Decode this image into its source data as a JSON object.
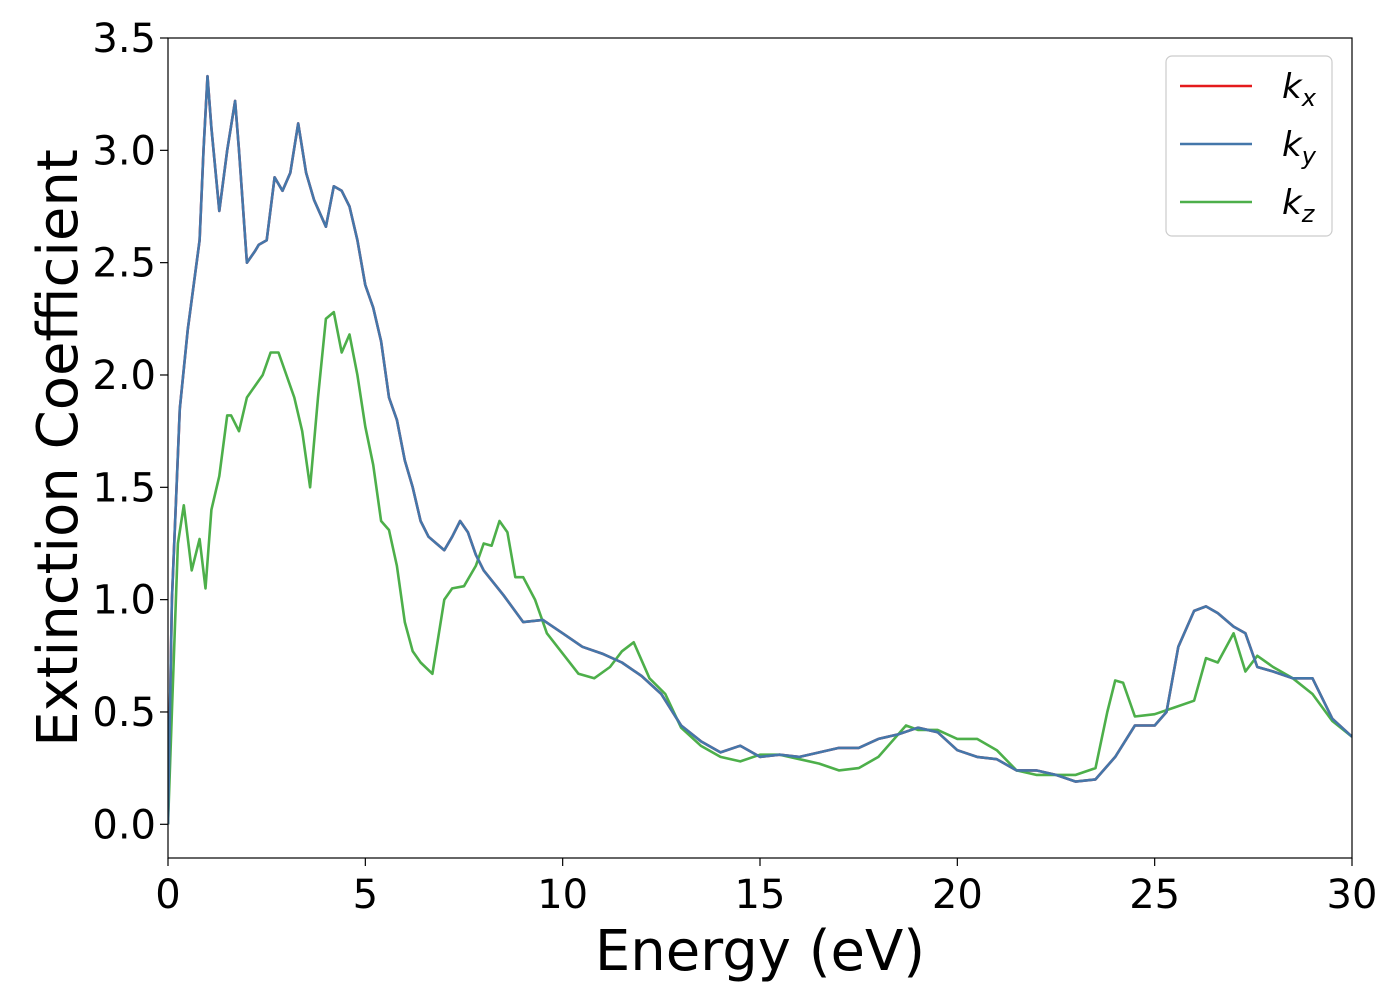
{
  "chart_data": {
    "type": "line",
    "title": "",
    "xlabel": "Energy (eV)",
    "ylabel": "Extinction Coefficient",
    "xlim": [
      0,
      30
    ],
    "ylim": [
      -0.15,
      3.5
    ],
    "xticks": [
      0,
      5,
      10,
      15,
      20,
      25,
      30
    ],
    "yticks": [
      0.0,
      0.5,
      1.0,
      1.5,
      2.0,
      2.5,
      3.0,
      3.5
    ],
    "xtick_labels": [
      "0",
      "5",
      "10",
      "15",
      "20",
      "25",
      "30"
    ],
    "ytick_labels": [
      "0.0",
      "0.5",
      "1.0",
      "1.5",
      "2.0",
      "2.5",
      "3.0",
      "3.5"
    ],
    "grid": false,
    "legend_position": "top-right",
    "series": [
      {
        "name": "k_x",
        "label_base": "k",
        "label_sub": "x",
        "color": "#e41a1c",
        "x": [
          0,
          0.1,
          0.3,
          0.5,
          0.8,
          0.9,
          1.0,
          1.1,
          1.3,
          1.5,
          1.7,
          1.8,
          2.0,
          2.2,
          2.3,
          2.5,
          2.7,
          2.9,
          3.1,
          3.3,
          3.5,
          3.7,
          4.0,
          4.2,
          4.4,
          4.6,
          4.8,
          5.0,
          5.2,
          5.4,
          5.6,
          5.8,
          6.0,
          6.2,
          6.4,
          6.6,
          6.8,
          7.0,
          7.2,
          7.4,
          7.6,
          7.8,
          8.0,
          8.5,
          9.0,
          9.5,
          10.0,
          10.5,
          11.0,
          11.5,
          12.0,
          12.5,
          13.0,
          13.5,
          14.0,
          14.5,
          15.0,
          15.5,
          16.0,
          16.5,
          17.0,
          17.5,
          18.0,
          18.5,
          19.0,
          19.5,
          20.0,
          20.5,
          21.0,
          21.5,
          22.0,
          22.5,
          23.0,
          23.5,
          24.0,
          24.5,
          25.0,
          25.3,
          25.6,
          26.0,
          26.3,
          26.6,
          27.0,
          27.3,
          27.6,
          28.0,
          28.5,
          29.0,
          29.5,
          30.0
        ],
        "y": [
          0.0,
          1.0,
          1.85,
          2.2,
          2.6,
          3.0,
          3.33,
          3.1,
          2.73,
          3.0,
          3.22,
          3.0,
          2.5,
          2.55,
          2.58,
          2.6,
          2.88,
          2.82,
          2.9,
          3.12,
          2.9,
          2.78,
          2.66,
          2.84,
          2.82,
          2.75,
          2.6,
          2.4,
          2.3,
          2.15,
          1.9,
          1.8,
          1.62,
          1.5,
          1.35,
          1.28,
          1.25,
          1.22,
          1.28,
          1.35,
          1.3,
          1.2,
          1.13,
          1.02,
          0.9,
          0.91,
          0.85,
          0.79,
          0.76,
          0.72,
          0.66,
          0.58,
          0.44,
          0.37,
          0.32,
          0.35,
          0.3,
          0.31,
          0.3,
          0.32,
          0.34,
          0.34,
          0.38,
          0.4,
          0.43,
          0.41,
          0.33,
          0.3,
          0.29,
          0.24,
          0.24,
          0.22,
          0.19,
          0.2,
          0.3,
          0.44,
          0.44,
          0.5,
          0.79,
          0.95,
          0.97,
          0.94,
          0.88,
          0.85,
          0.7,
          0.68,
          0.65,
          0.65,
          0.47,
          0.39
        ]
      },
      {
        "name": "k_y",
        "label_base": "k",
        "label_sub": "y",
        "color": "#4477aa",
        "x": [
          0,
          0.1,
          0.3,
          0.5,
          0.8,
          0.9,
          1.0,
          1.1,
          1.3,
          1.5,
          1.7,
          1.8,
          2.0,
          2.2,
          2.3,
          2.5,
          2.7,
          2.9,
          3.1,
          3.3,
          3.5,
          3.7,
          4.0,
          4.2,
          4.4,
          4.6,
          4.8,
          5.0,
          5.2,
          5.4,
          5.6,
          5.8,
          6.0,
          6.2,
          6.4,
          6.6,
          6.8,
          7.0,
          7.2,
          7.4,
          7.6,
          7.8,
          8.0,
          8.5,
          9.0,
          9.5,
          10.0,
          10.5,
          11.0,
          11.5,
          12.0,
          12.5,
          13.0,
          13.5,
          14.0,
          14.5,
          15.0,
          15.5,
          16.0,
          16.5,
          17.0,
          17.5,
          18.0,
          18.5,
          19.0,
          19.5,
          20.0,
          20.5,
          21.0,
          21.5,
          22.0,
          22.5,
          23.0,
          23.5,
          24.0,
          24.5,
          25.0,
          25.3,
          25.6,
          26.0,
          26.3,
          26.6,
          27.0,
          27.3,
          27.6,
          28.0,
          28.5,
          29.0,
          29.5,
          30.0
        ],
        "y": [
          0.0,
          1.0,
          1.85,
          2.2,
          2.6,
          3.0,
          3.33,
          3.1,
          2.73,
          3.0,
          3.22,
          3.0,
          2.5,
          2.55,
          2.58,
          2.6,
          2.88,
          2.82,
          2.9,
          3.12,
          2.9,
          2.78,
          2.66,
          2.84,
          2.82,
          2.75,
          2.6,
          2.4,
          2.3,
          2.15,
          1.9,
          1.8,
          1.62,
          1.5,
          1.35,
          1.28,
          1.25,
          1.22,
          1.28,
          1.35,
          1.3,
          1.2,
          1.13,
          1.02,
          0.9,
          0.91,
          0.85,
          0.79,
          0.76,
          0.72,
          0.66,
          0.58,
          0.44,
          0.37,
          0.32,
          0.35,
          0.3,
          0.31,
          0.3,
          0.32,
          0.34,
          0.34,
          0.38,
          0.4,
          0.43,
          0.41,
          0.33,
          0.3,
          0.29,
          0.24,
          0.24,
          0.22,
          0.19,
          0.2,
          0.3,
          0.44,
          0.44,
          0.5,
          0.79,
          0.95,
          0.97,
          0.94,
          0.88,
          0.85,
          0.7,
          0.68,
          0.65,
          0.65,
          0.47,
          0.39
        ]
      },
      {
        "name": "k_z",
        "label_base": "k",
        "label_sub": "z",
        "color": "#4daf4a",
        "x": [
          0,
          0.1,
          0.25,
          0.4,
          0.6,
          0.8,
          0.95,
          1.1,
          1.3,
          1.5,
          1.6,
          1.8,
          2.0,
          2.2,
          2.4,
          2.6,
          2.8,
          3.0,
          3.2,
          3.4,
          3.6,
          3.8,
          4.0,
          4.2,
          4.4,
          4.6,
          4.8,
          5.0,
          5.2,
          5.4,
          5.6,
          5.8,
          6.0,
          6.2,
          6.4,
          6.7,
          7.0,
          7.2,
          7.5,
          7.8,
          8.0,
          8.2,
          8.4,
          8.6,
          8.8,
          9.0,
          9.3,
          9.6,
          10.0,
          10.4,
          10.8,
          11.2,
          11.5,
          11.8,
          12.2,
          12.6,
          13.0,
          13.5,
          14.0,
          14.5,
          15.0,
          15.5,
          16.0,
          16.5,
          17.0,
          17.5,
          18.0,
          18.7,
          19.0,
          19.5,
          20.0,
          20.5,
          21.0,
          21.5,
          22.0,
          22.5,
          23.0,
          23.5,
          23.8,
          24.0,
          24.2,
          24.5,
          25.0,
          25.5,
          26.0,
          26.3,
          26.6,
          27.0,
          27.3,
          27.6,
          28.0,
          28.5,
          29.0,
          29.5,
          30.0
        ],
        "y": [
          0.0,
          0.5,
          1.25,
          1.42,
          1.13,
          1.27,
          1.05,
          1.4,
          1.55,
          1.82,
          1.82,
          1.75,
          1.9,
          1.95,
          2.0,
          2.1,
          2.1,
          2.0,
          1.9,
          1.75,
          1.5,
          1.9,
          2.25,
          2.28,
          2.1,
          2.18,
          2.0,
          1.77,
          1.6,
          1.35,
          1.31,
          1.15,
          0.9,
          0.77,
          0.72,
          0.67,
          1.0,
          1.05,
          1.06,
          1.15,
          1.25,
          1.24,
          1.35,
          1.3,
          1.1,
          1.1,
          1.0,
          0.85,
          0.76,
          0.67,
          0.65,
          0.7,
          0.77,
          0.81,
          0.65,
          0.58,
          0.43,
          0.35,
          0.3,
          0.28,
          0.31,
          0.31,
          0.29,
          0.27,
          0.24,
          0.25,
          0.3,
          0.44,
          0.42,
          0.42,
          0.38,
          0.38,
          0.33,
          0.24,
          0.22,
          0.22,
          0.22,
          0.25,
          0.5,
          0.64,
          0.63,
          0.48,
          0.49,
          0.52,
          0.55,
          0.74,
          0.72,
          0.85,
          0.68,
          0.75,
          0.7,
          0.65,
          0.58,
          0.46,
          0.39
        ]
      }
    ]
  }
}
